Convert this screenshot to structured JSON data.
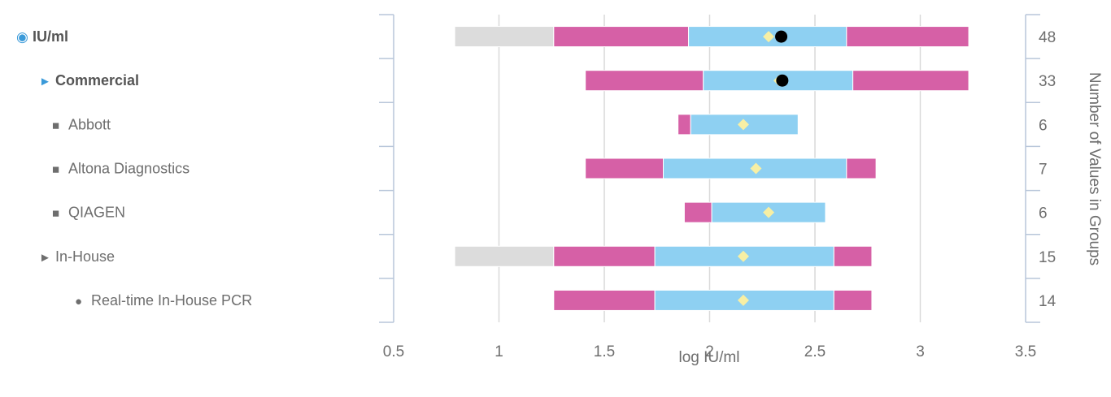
{
  "colors": {
    "grey": "#dcdcdc",
    "pink": "#d660a6",
    "blue": "#8ed0f2",
    "diamond": "#f7efa4",
    "dot": "#000000",
    "level0_bullet": "#3a9ad9",
    "level1_arrow": "#3a9ad9",
    "text_dark": "#555555",
    "text_light": "#6e6e6e",
    "grid": "#d9d9d9",
    "axis": "#b8c6da"
  },
  "chart_data": {
    "type": "bar",
    "xlabel": "log IU/ml",
    "y2label": "Number of Values in Groups",
    "xlim": [
      0.5,
      3.5
    ],
    "xticks": [
      "0.5",
      "1",
      "1.5",
      "2",
      "2.5",
      "3",
      "3.5"
    ],
    "xtick_values": [
      0.5,
      1,
      1.5,
      2,
      2.5,
      3,
      3.5
    ],
    "grid": true,
    "rows": [
      {
        "label": "IU/ml",
        "marker": "◉",
        "level": 0,
        "count": "48",
        "grey": [
          0.79,
          1.26
        ],
        "pink_low": [
          1.26,
          1.9
        ],
        "blue": [
          1.9,
          2.65
        ],
        "pink_high": [
          2.65,
          3.23
        ],
        "diamond": 2.28,
        "dot": 2.34
      },
      {
        "label": "Commercial",
        "marker": "►",
        "level": 1,
        "count": "33",
        "grey": null,
        "pink_low": [
          1.41,
          1.97
        ],
        "blue": [
          1.97,
          2.68
        ],
        "pink_high": [
          2.68,
          3.23
        ],
        "diamond": 2.33,
        "dot": 2.345
      },
      {
        "label": "Abbott",
        "marker": "■",
        "level": 2,
        "count": "6",
        "grey": null,
        "pink_low": [
          1.85,
          1.91
        ],
        "blue": [
          1.91,
          2.42
        ],
        "pink_high": null,
        "diamond": 2.16,
        "dot": null
      },
      {
        "label": "Altona Diagnostics",
        "marker": "■",
        "level": 2,
        "count": "7",
        "grey": null,
        "pink_low": [
          1.41,
          1.78
        ],
        "blue": [
          1.78,
          2.65
        ],
        "pink_high": [
          2.65,
          2.79
        ],
        "diamond": 2.22,
        "dot": null
      },
      {
        "label": "QIAGEN",
        "marker": "■",
        "level": 2,
        "count": "6",
        "grey": null,
        "pink_low": [
          1.88,
          2.01
        ],
        "blue": [
          2.01,
          2.55
        ],
        "pink_high": null,
        "diamond": 2.28,
        "dot": null
      },
      {
        "label": "In-House",
        "marker": "►",
        "level": 1,
        "count": "15",
        "grey": [
          0.79,
          1.26
        ],
        "pink_low": [
          1.26,
          1.74
        ],
        "blue": [
          1.74,
          2.59
        ],
        "pink_high": [
          2.59,
          2.77
        ],
        "diamond": 2.16,
        "dot": null
      },
      {
        "label": "Real-time In-House PCR",
        "marker": "●",
        "level": 3,
        "count": "14",
        "grey": null,
        "pink_low": [
          1.26,
          1.74
        ],
        "blue": [
          1.74,
          2.59
        ],
        "pink_high": [
          2.59,
          2.77
        ],
        "diamond": 2.16,
        "dot": null
      }
    ]
  }
}
